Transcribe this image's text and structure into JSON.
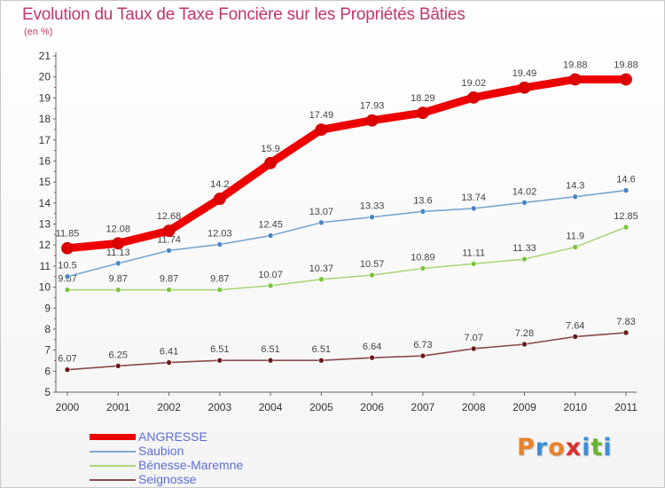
{
  "header": {
    "title": "Evolution du Taux de Taxe Foncière sur les Propriétés Bâties",
    "subtitle": "(en %)"
  },
  "logo": {
    "text": "Proxiti",
    "letter_colors": [
      "#e8832a",
      "#3a8fd8",
      "#e8832a",
      "#d8312a",
      "#3a8fd8",
      "#6ab42e",
      "#3a8fd8"
    ]
  },
  "chart_data": {
    "type": "line",
    "title": "Evolution du Taux de Taxe Foncière sur les Propriétés Bâties",
    "ylabel": "(en %)",
    "xlabel": "",
    "x": [
      2000,
      2001,
      2002,
      2003,
      2004,
      2005,
      2006,
      2007,
      2008,
      2009,
      2010,
      2011
    ],
    "ylim": [
      5,
      21
    ],
    "yticks": [
      5,
      6,
      7,
      8,
      9,
      10,
      11,
      12,
      13,
      14,
      15,
      16,
      17,
      18,
      19,
      20,
      21
    ],
    "grid": false,
    "legend_position": "bottom-left",
    "series": [
      {
        "name": "ANGRESSE",
        "values": [
          11.85,
          12.08,
          12.68,
          14.2,
          15.9,
          17.49,
          17.93,
          18.29,
          19.02,
          19.49,
          19.88,
          19.88
        ],
        "labels": [
          "11.85",
          "12.08",
          "12.68",
          "14.2",
          "15.9",
          "17.49",
          "17.93",
          "18.29",
          "19.02",
          "19.49",
          "19.88",
          "19.88"
        ],
        "color": "#ee0000",
        "marker_color": "#dd0000"
      },
      {
        "name": "Saubion",
        "values": [
          10.5,
          11.13,
          11.74,
          12.03,
          12.45,
          13.07,
          13.33,
          13.6,
          13.74,
          14.02,
          14.3,
          14.6
        ],
        "labels": [
          "10.5",
          "11.13",
          "11.74",
          "12.03",
          "12.45",
          "13.07",
          "13.33",
          "13.6",
          "13.74",
          "14.02",
          "14.3",
          "14.6"
        ],
        "color": "#7ba7d1",
        "marker_color": "#4a86c2"
      },
      {
        "name": "Bénesse-Maremne",
        "values": [
          9.87,
          9.87,
          9.87,
          9.87,
          10.07,
          10.37,
          10.57,
          10.89,
          11.11,
          11.33,
          11.9,
          12.85
        ],
        "labels": [
          "9.87",
          "9.87",
          "9.87",
          "9.87",
          "10.07",
          "10.37",
          "10.57",
          "10.89",
          "11.11",
          "11.33",
          "11.9",
          "12.85"
        ],
        "color": "#a8d87a",
        "marker_color": "#7cc43a"
      },
      {
        "name": "Seignosse",
        "values": [
          6.07,
          6.25,
          6.41,
          6.51,
          6.51,
          6.51,
          6.64,
          6.73,
          7.07,
          7.28,
          7.64,
          7.83
        ],
        "labels": [
          "6.07",
          "6.25",
          "6.41",
          "6.51",
          "6.51",
          "6.51",
          "6.64",
          "6.73",
          "7.07",
          "7.28",
          "7.64",
          "7.83"
        ],
        "color": "#8a4a4a",
        "marker_color": "#6a1a1a"
      }
    ]
  }
}
